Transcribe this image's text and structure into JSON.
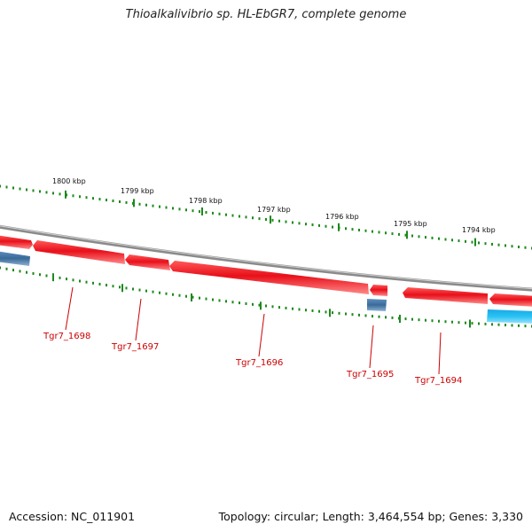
{
  "title": "Thioalkalivibrio sp. HL-EbGR7, complete genome",
  "footer": {
    "accession": "Accession: NC_011901",
    "summary": "Topology: circular; Length: 3,464,554 bp; Genes: 3,330"
  },
  "colors": {
    "forward_gene": "#e8101a",
    "reverse_gene_dark": "#3f6f9f",
    "reverse_gene_light": "#1db6ee",
    "backbone": "#888888",
    "ticks": "#1c8a1c",
    "labels": "#cc0000"
  },
  "ticks": [
    {
      "label": "1800 kbp"
    },
    {
      "label": "1799 kbp"
    },
    {
      "label": "1798 kbp"
    },
    {
      "label": "1797 kbp"
    },
    {
      "label": "1796 kbp"
    },
    {
      "label": "1795 kbp"
    },
    {
      "label": "1794 kbp"
    }
  ],
  "genes": [
    {
      "id": "Tgr7_1698"
    },
    {
      "id": "Tgr7_1697"
    },
    {
      "id": "Tgr7_1696"
    },
    {
      "id": "Tgr7_1695"
    },
    {
      "id": "Tgr7_1694"
    }
  ]
}
